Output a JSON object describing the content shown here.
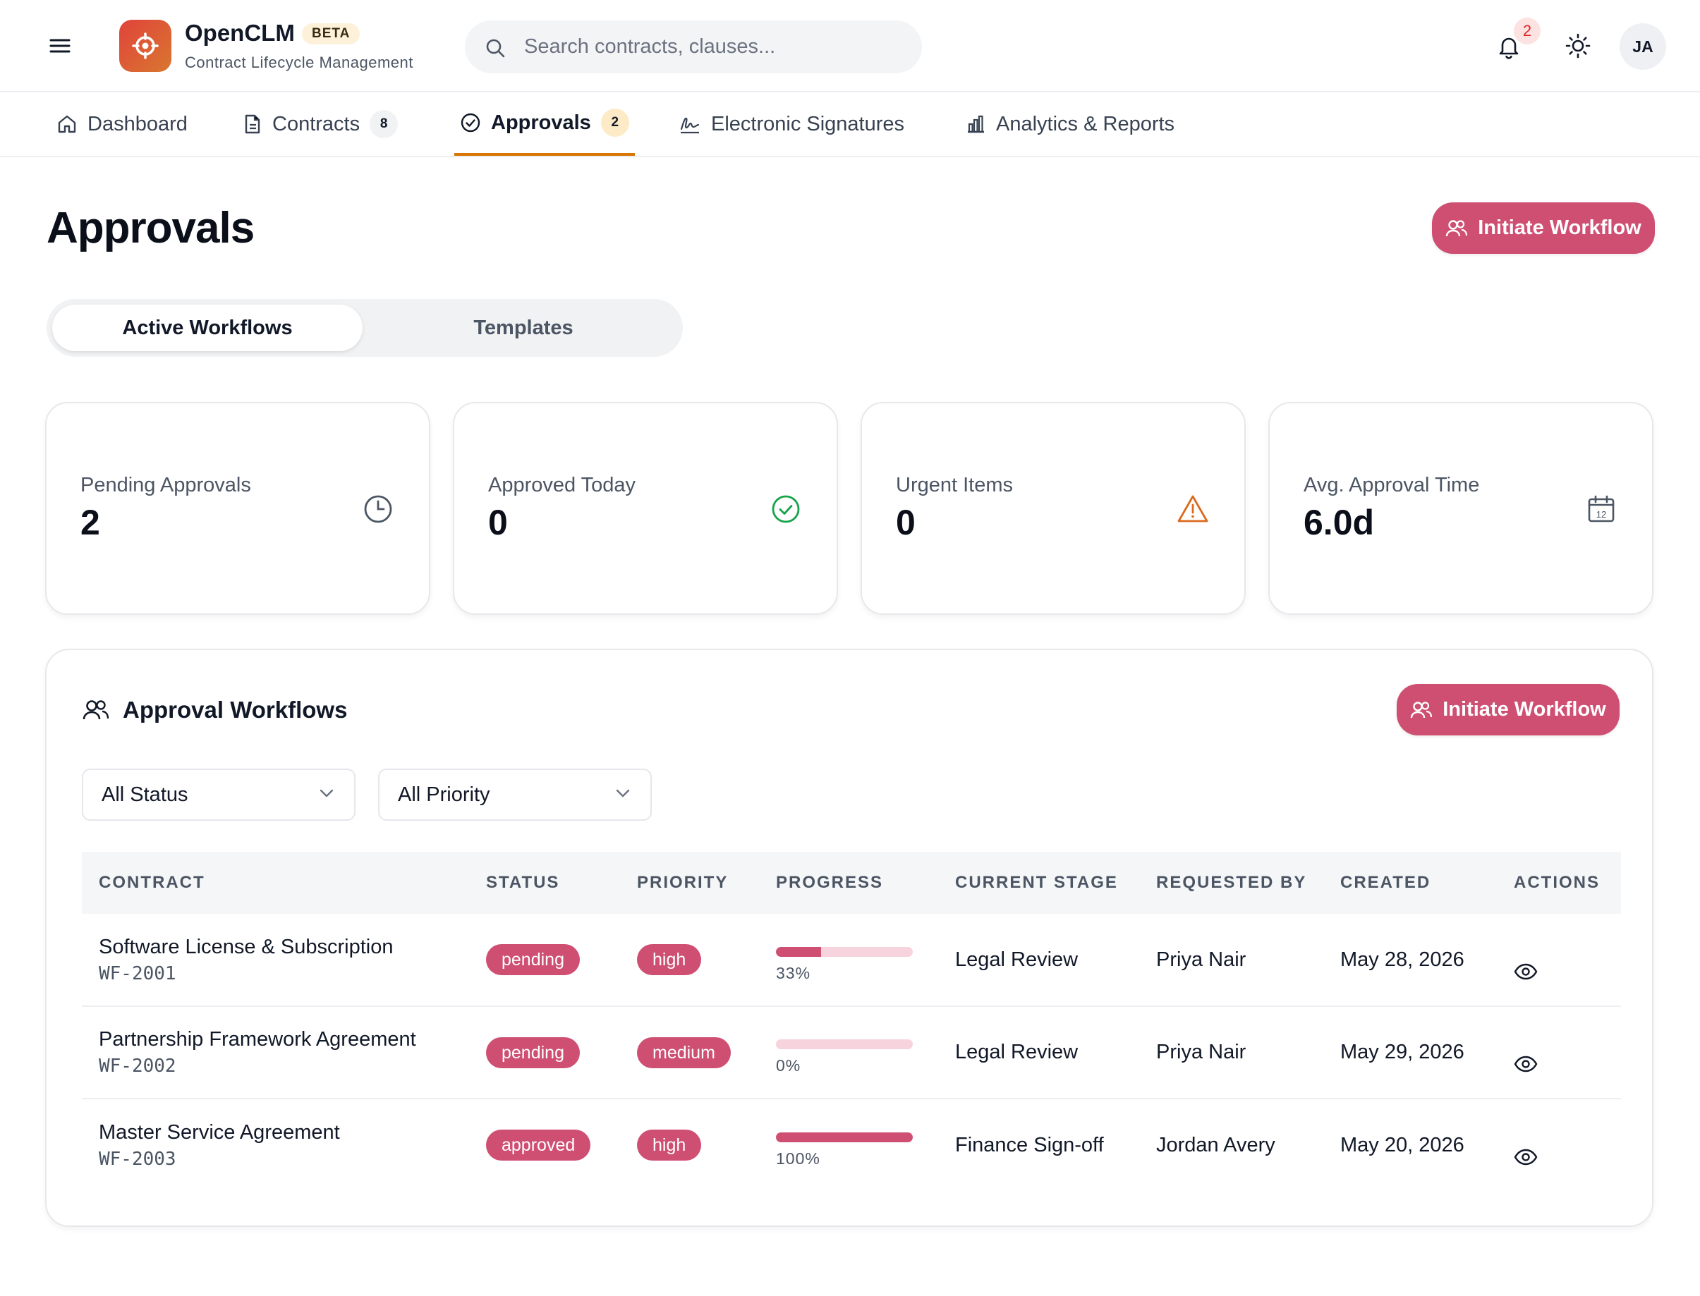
{
  "header": {
    "app_name": "OpenCLM",
    "badge": "BETA",
    "subtitle": "Contract Lifecycle Management",
    "search_placeholder": "Search contracts, clauses...",
    "notification_count": "2",
    "avatar_initials": "JA"
  },
  "nav": {
    "items": [
      {
        "label": "Dashboard",
        "icon": "home-icon"
      },
      {
        "label": "Contracts",
        "icon": "document-icon",
        "count": "8"
      },
      {
        "label": "Approvals",
        "icon": "check-circle-icon",
        "count": "2",
        "active": true
      },
      {
        "label": "Electronic Signatures",
        "icon": "signature-icon"
      },
      {
        "label": "Analytics & Reports",
        "icon": "bar-chart-icon"
      }
    ]
  },
  "page": {
    "title": "Approvals",
    "initiate_label": "Initiate Workflow"
  },
  "tabs": {
    "active": "Active Workflows",
    "inactive": "Templates"
  },
  "stats": [
    {
      "label": "Pending Approvals",
      "value": "2",
      "icon": "clock-icon"
    },
    {
      "label": "Approved Today",
      "value": "0",
      "icon": "check-circle-icon"
    },
    {
      "label": "Urgent Items",
      "value": "0",
      "icon": "alert-triangle-icon"
    },
    {
      "label": "Avg. Approval Time",
      "value": "6.0d",
      "icon": "calendar-icon"
    }
  ],
  "workflows": {
    "title": "Approval Workflows",
    "initiate_label": "Initiate Workflow",
    "status_filter": "All Status",
    "priority_filter": "All Priority",
    "columns": [
      "CONTRACT",
      "STATUS",
      "PRIORITY",
      "PROGRESS",
      "CURRENT STAGE",
      "REQUESTED BY",
      "CREATED",
      "ACTIONS"
    ],
    "rows": [
      {
        "contract": "Software License & Subscription",
        "id": "WF-2001",
        "status": "pending",
        "priority": "high",
        "progress": 33,
        "progress_label": "33%",
        "stage": "Legal Review",
        "requested_by": "Priya Nair",
        "created": "May 28, 2026"
      },
      {
        "contract": "Partnership Framework Agreement",
        "id": "WF-2002",
        "status": "pending",
        "priority": "medium",
        "progress": 0,
        "progress_label": "0%",
        "stage": "Legal Review",
        "requested_by": "Priya Nair",
        "created": "May 29, 2026"
      },
      {
        "contract": "Master Service Agreement",
        "id": "WF-2003",
        "status": "approved",
        "priority": "high",
        "progress": 100,
        "progress_label": "100%",
        "stage": "Finance Sign-off",
        "requested_by": "Jordan Avery",
        "created": "May 20, 2026"
      }
    ]
  },
  "colors": {
    "accent": "#cf4f73",
    "nav_underline": "#d97706",
    "logo_gradient": [
      "#e0433b",
      "#d9772f"
    ],
    "success": "#16a34a",
    "warning": "#dc6a1d"
  }
}
